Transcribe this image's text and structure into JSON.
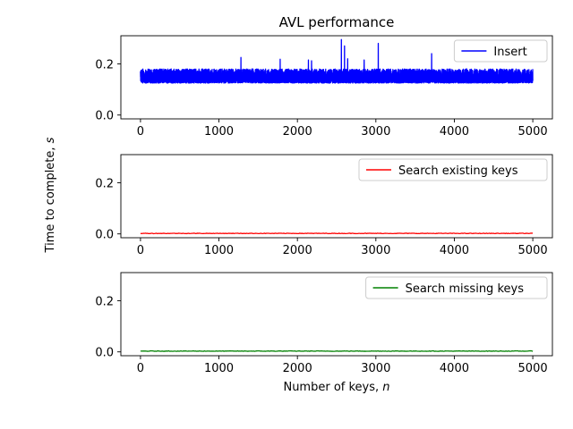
{
  "chart_data": {
    "type": "line",
    "title": "AVL performance",
    "xlabel": "Number of keys, n",
    "xlabel_text": "Number of keys, ",
    "xlabel_var": "n",
    "ylabel": "Time to complete, s",
    "ylabel_text": "Time to complete, ",
    "ylabel_var": "s",
    "xlim": [
      -250,
      5250
    ],
    "ylim": [
      -0.015,
      0.31
    ],
    "xticks": [
      0,
      1000,
      2000,
      3000,
      4000,
      5000
    ],
    "xtick_labels": [
      "0",
      "1000",
      "2000",
      "3000",
      "4000",
      "5000"
    ],
    "yticks": [
      0.0,
      0.2
    ],
    "ytick_labels": [
      "0.0",
      "0.2"
    ],
    "legend_position": "upper right",
    "panels": [
      {
        "series": [
          {
            "name": "Insert",
            "color": "#0000ff",
            "x_range": [
              0,
              5000
            ],
            "points": 5000,
            "baseline": 0.125,
            "typical_max": 0.18,
            "spikes": [
              {
                "x": 1280,
                "y": 0.225
              },
              {
                "x": 1780,
                "y": 0.218
              },
              {
                "x": 2140,
                "y": 0.215
              },
              {
                "x": 2180,
                "y": 0.212
              },
              {
                "x": 2560,
                "y": 0.295
              },
              {
                "x": 2600,
                "y": 0.27
              },
              {
                "x": 2640,
                "y": 0.22
              },
              {
                "x": 2850,
                "y": 0.215
              },
              {
                "x": 3030,
                "y": 0.28
              },
              {
                "x": 3710,
                "y": 0.24
              }
            ]
          }
        ]
      },
      {
        "series": [
          {
            "name": "Search existing keys",
            "color": "#ff0000",
            "x_range": [
              0,
              5000
            ],
            "points": 5000,
            "approx_value": 0.002
          }
        ]
      },
      {
        "series": [
          {
            "name": "Search missing keys",
            "color": "#008000",
            "x_range": [
              0,
              5000
            ],
            "points": 5000,
            "approx_value": 0.003
          }
        ]
      }
    ]
  }
}
